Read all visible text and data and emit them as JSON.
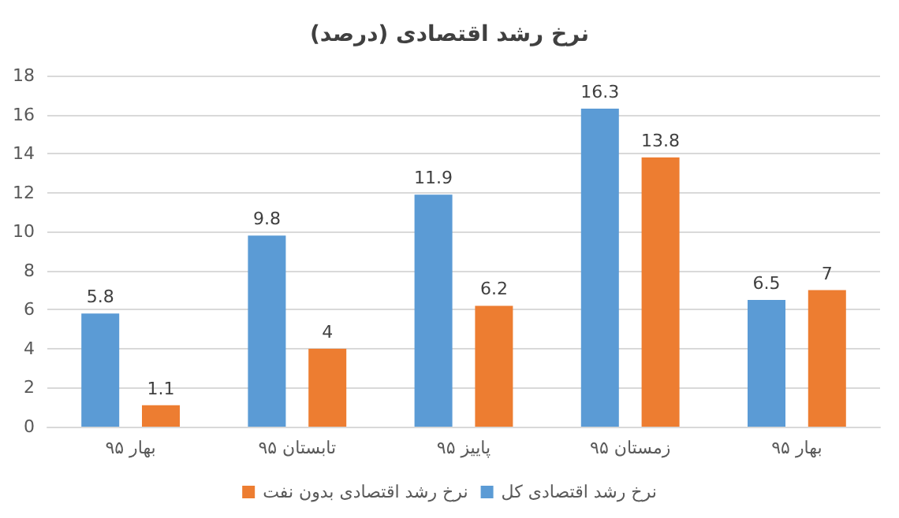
{
  "chart_data": {
    "type": "bar",
    "title": "نرخ رشد اقتصادی (درصد)",
    "categories": [
      "بهار ۹۵",
      "تابستان ۹۵",
      "پاییز ۹۵",
      "زمستان ۹۵",
      "بهار ۹۵"
    ],
    "series": [
      {
        "name": "نرخ رشد اقتصادی کل",
        "color": "#5b9bd5",
        "values": [
          5.8,
          9.8,
          11.9,
          16.3,
          6.5
        ]
      },
      {
        "name": "نرخ رشد اقتصادی بدون نفت",
        "color": "#ed7d31",
        "values": [
          1.1,
          4,
          6.2,
          13.8,
          7
        ]
      }
    ],
    "ylim": [
      0,
      18
    ],
    "yticks": [
      0,
      2,
      4,
      6,
      8,
      10,
      12,
      14,
      16,
      18
    ],
    "grid": "y",
    "legend": "bottom",
    "data_labels": true
  }
}
